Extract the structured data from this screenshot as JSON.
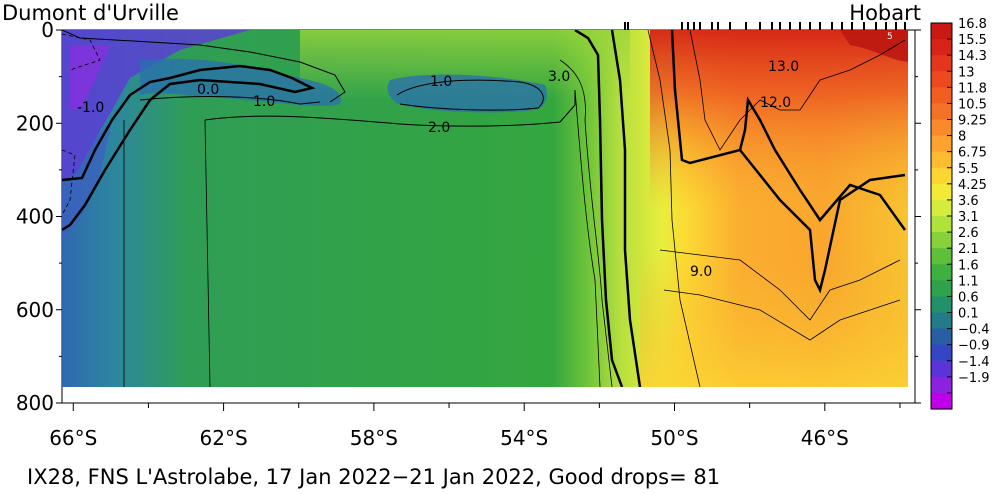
{
  "chart_data": {
    "type": "heatmap",
    "title_left": "Dumont d'Urville",
    "title_right": "Hobart",
    "caption": "IX28, FNS L'Astrolabe, 17 Jan 2022−21 Jan 2022, Good drops= 81",
    "x_ticks": [
      "66°S",
      "62°S",
      "58°S",
      "54°S",
      "50°S",
      "46°S"
    ],
    "x_tick_values": [
      -66,
      -62,
      -58,
      -54,
      -50,
      -46
    ],
    "xlim": [
      -66.3,
      -43.6
    ],
    "y_ticks": [
      "0",
      "200",
      "400",
      "600",
      "800"
    ],
    "y_tick_values": [
      0,
      200,
      400,
      600,
      800
    ],
    "ylim": [
      0,
      800
    ],
    "y_inverted": true,
    "data_max_depth": 760,
    "colorbar_labels": [
      "16.8",
      "15.5",
      "14.3",
      "13",
      "11.8",
      "10.5",
      "9.25",
      "8",
      "6.75",
      "5.5",
      "4.25",
      "3.6",
      "3.1",
      "2.6",
      "2.1",
      "1.6",
      "1.1",
      "0.6",
      "0.1",
      "−0.4",
      "−0.9",
      "−1.4",
      "−1.9"
    ],
    "colorbar_colors": [
      "#c81a12",
      "#d82418",
      "#e4361c",
      "#ec4a1e",
      "#f25e22",
      "#f47228",
      "#f88a2c",
      "#fba32e",
      "#fdbb30",
      "#fcd533",
      "#f3ea38",
      "#d6ec3c",
      "#b0e23c",
      "#86d23a",
      "#5ebf38",
      "#3fb040",
      "#2fa24c",
      "#22916a",
      "#237a88",
      "#2a5ea4",
      "#3446c4",
      "#5a34d8",
      "#8c22e0",
      "#c000e8"
    ],
    "contour_labels": [
      "-1.0",
      "0.0",
      "1.0",
      "1.0",
      "3.0",
      "2.0",
      "13.0",
      "12.0",
      "9.0"
    ],
    "annotation": "5",
    "legend": "colorbar-right"
  }
}
